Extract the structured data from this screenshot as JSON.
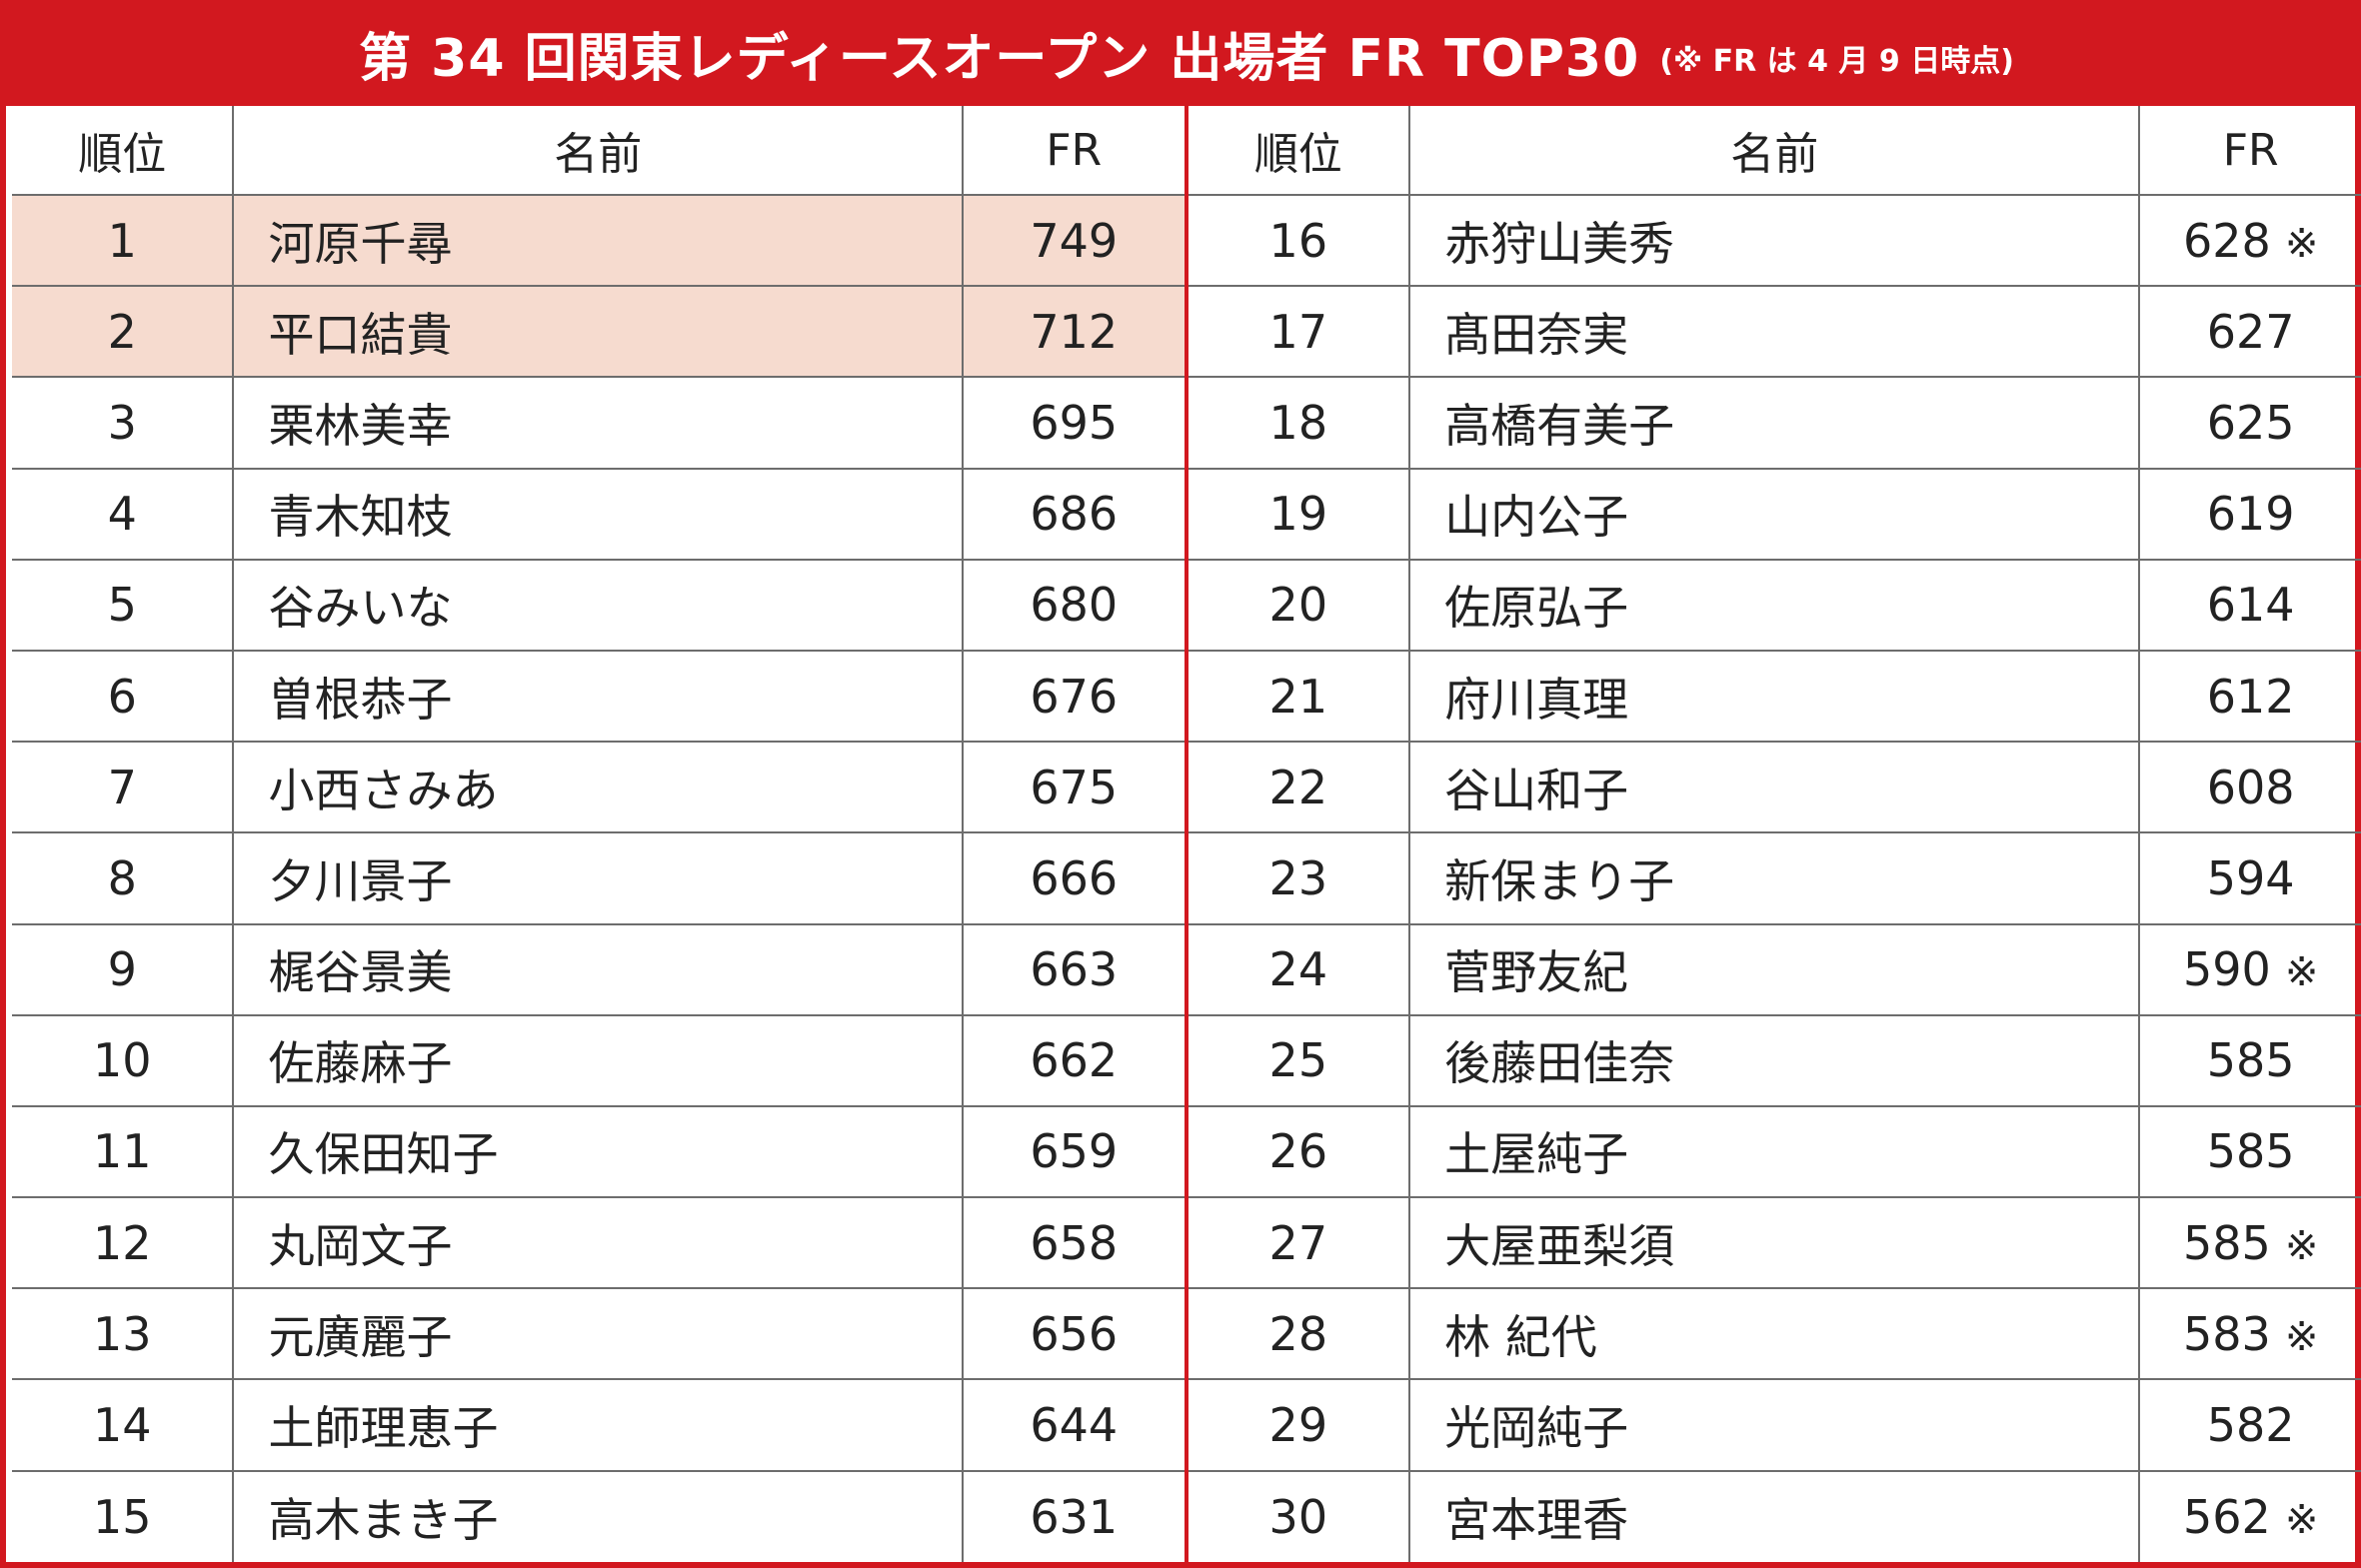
{
  "title": {
    "main": "第 34 回関東レディースオープン 出場者 FR TOP30",
    "note": "(※ FR は 4 月 9 日時点)"
  },
  "colors": {
    "accent": "#d2181f",
    "highlight": "#f6dbcf"
  },
  "table": {
    "headers": {
      "rank": "順位",
      "name": "名前",
      "fr": "FR"
    },
    "left_rows": [
      {
        "rank": "1",
        "name": "河原千尋",
        "fr": "749",
        "note": "",
        "highlight": true
      },
      {
        "rank": "2",
        "name": "平口結貴",
        "fr": "712",
        "note": "",
        "highlight": true
      },
      {
        "rank": "3",
        "name": "栗林美幸",
        "fr": "695",
        "note": ""
      },
      {
        "rank": "4",
        "name": "青木知枝",
        "fr": "686",
        "note": ""
      },
      {
        "rank": "5",
        "name": "谷みいな",
        "fr": "680",
        "note": ""
      },
      {
        "rank": "6",
        "name": "曽根恭子",
        "fr": "676",
        "note": ""
      },
      {
        "rank": "7",
        "name": "小西さみあ",
        "fr": "675",
        "note": ""
      },
      {
        "rank": "8",
        "name": "夕川景子",
        "fr": "666",
        "note": ""
      },
      {
        "rank": "9",
        "name": "梶谷景美",
        "fr": "663",
        "note": ""
      },
      {
        "rank": "10",
        "name": "佐藤麻子",
        "fr": "662",
        "note": ""
      },
      {
        "rank": "11",
        "name": "久保田知子",
        "fr": "659",
        "note": ""
      },
      {
        "rank": "12",
        "name": "丸岡文子",
        "fr": "658",
        "note": ""
      },
      {
        "rank": "13",
        "name": "元廣麗子",
        "fr": "656",
        "note": ""
      },
      {
        "rank": "14",
        "name": "土師理恵子",
        "fr": "644",
        "note": ""
      },
      {
        "rank": "15",
        "name": "高木まき子",
        "fr": "631",
        "note": ""
      }
    ],
    "right_rows": [
      {
        "rank": "16",
        "name": "赤狩山美秀",
        "fr": "628",
        "note": "※"
      },
      {
        "rank": "17",
        "name": "髙田奈実",
        "fr": "627",
        "note": ""
      },
      {
        "rank": "18",
        "name": "高橋有美子",
        "fr": "625",
        "note": ""
      },
      {
        "rank": "19",
        "name": "山内公子",
        "fr": "619",
        "note": ""
      },
      {
        "rank": "20",
        "name": "佐原弘子",
        "fr": "614",
        "note": ""
      },
      {
        "rank": "21",
        "name": "府川真理",
        "fr": "612",
        "note": ""
      },
      {
        "rank": "22",
        "name": "谷山和子",
        "fr": "608",
        "note": ""
      },
      {
        "rank": "23",
        "name": "新保まり子",
        "fr": "594",
        "note": ""
      },
      {
        "rank": "24",
        "name": "菅野友紀",
        "fr": "590",
        "note": "※"
      },
      {
        "rank": "25",
        "name": "後藤田佳奈",
        "fr": "585",
        "note": ""
      },
      {
        "rank": "26",
        "name": "土屋純子",
        "fr": "585",
        "note": ""
      },
      {
        "rank": "27",
        "name": "大屋亜梨須",
        "fr": "585",
        "note": "※"
      },
      {
        "rank": "28",
        "name": "林 紀代",
        "fr": "583",
        "note": "※"
      },
      {
        "rank": "29",
        "name": "光岡純子",
        "fr": "582",
        "note": ""
      },
      {
        "rank": "30",
        "name": "宮本理香",
        "fr": "562",
        "note": "※"
      }
    ]
  }
}
